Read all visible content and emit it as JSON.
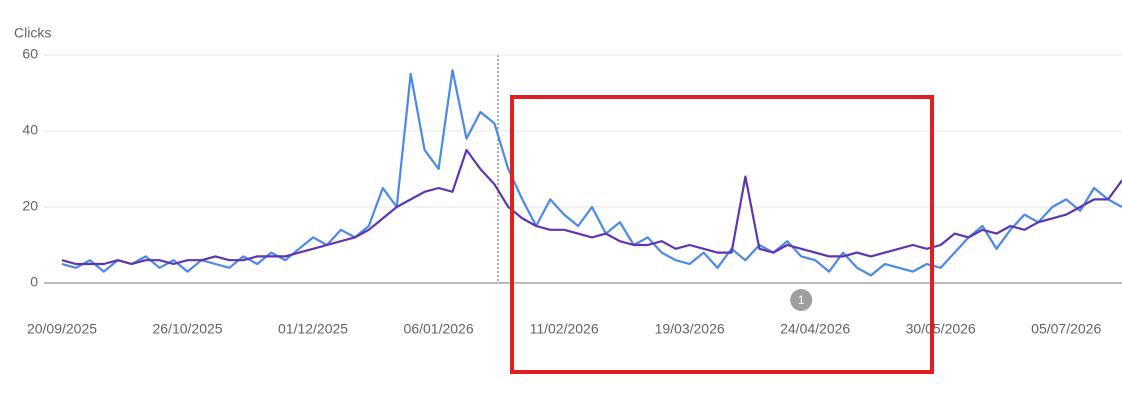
{
  "chart_data": {
    "type": "line",
    "y_label": "Clicks",
    "x": [
      "20/09/2025",
      "24/09/2025",
      "28/09/2025",
      "02/10/2025",
      "06/10/2025",
      "10/10/2025",
      "14/10/2025",
      "18/10/2025",
      "22/10/2025",
      "26/10/2025",
      "30/10/2025",
      "03/11/2025",
      "07/11/2025",
      "11/11/2025",
      "15/11/2025",
      "19/11/2025",
      "23/11/2025",
      "27/11/2025",
      "01/12/2025",
      "05/12/2025",
      "09/12/2025",
      "13/12/2025",
      "17/12/2025",
      "21/12/2025",
      "25/12/2025",
      "29/12/2025",
      "02/01/2026",
      "06/01/2026",
      "10/01/2026",
      "14/01/2026",
      "18/01/2026",
      "22/01/2026",
      "26/01/2026",
      "30/01/2026",
      "03/02/2026",
      "07/02/2026",
      "11/02/2026",
      "15/02/2026",
      "19/02/2026",
      "23/02/2026",
      "27/02/2026",
      "03/03/2026",
      "07/03/2026",
      "11/03/2026",
      "15/03/2026",
      "19/03/2026",
      "23/03/2026",
      "27/03/2026",
      "31/03/2026",
      "04/04/2026",
      "08/04/2026",
      "12/04/2026",
      "16/04/2026",
      "20/04/2026",
      "24/04/2026",
      "28/04/2026",
      "02/05/2026",
      "06/05/2026",
      "10/05/2026",
      "14/05/2026",
      "18/05/2026",
      "22/05/2026",
      "26/05/2026",
      "30/05/2026",
      "03/06/2026",
      "07/06/2026",
      "11/06/2026",
      "15/06/2026",
      "19/06/2026",
      "23/06/2026",
      "27/06/2026",
      "01/07/2026",
      "05/07/2026",
      "09/07/2026",
      "13/07/2026",
      "17/07/2026",
      "21/07/2026"
    ],
    "series": [
      {
        "color": "#4a89e8",
        "values": [
          5,
          4,
          6,
          3,
          6,
          5,
          7,
          4,
          6,
          3,
          6,
          5,
          4,
          7,
          5,
          8,
          6,
          9,
          12,
          10,
          14,
          12,
          15,
          25,
          20,
          55,
          35,
          30,
          56,
          38,
          45,
          42,
          30,
          22,
          15,
          22,
          18,
          15,
          20,
          13,
          16,
          10,
          12,
          8,
          6,
          5,
          8,
          4,
          9,
          6,
          10,
          8,
          11,
          7,
          6,
          3,
          8,
          4,
          2,
          5,
          4,
          3,
          5,
          4,
          8,
          12,
          15,
          9,
          14,
          18,
          16,
          20,
          22,
          19,
          25,
          22,
          20
        ]
      },
      {
        "color": "#5e35b1",
        "values": [
          6,
          5,
          5,
          5,
          6,
          5,
          6,
          6,
          5,
          6,
          6,
          7,
          6,
          6,
          7,
          7,
          7,
          8,
          9,
          10,
          11,
          12,
          14,
          17,
          20,
          22,
          24,
          25,
          24,
          35,
          30,
          26,
          20,
          17,
          15,
          14,
          14,
          13,
          12,
          13,
          11,
          10,
          10,
          11,
          9,
          10,
          9,
          8,
          8,
          28,
          9,
          8,
          10,
          9,
          8,
          7,
          7,
          8,
          7,
          8,
          9,
          10,
          9,
          10,
          13,
          12,
          14,
          13,
          15,
          14,
          16,
          17,
          18,
          20,
          22,
          22,
          27
        ]
      }
    ],
    "xlim": [
      "20/09/2025",
      "21/07/2026"
    ],
    "xticks": [
      "20/09/2025",
      "26/10/2025",
      "01/12/2025",
      "06/01/2026",
      "11/02/2026",
      "19/03/2026",
      "24/04/2026",
      "30/05/2026",
      "05/07/2026"
    ],
    "ylim": [
      0,
      60
    ],
    "yticks": [
      0,
      20,
      40,
      60
    ],
    "grid": true,
    "annotations": [
      {
        "x": "20/04/2026",
        "label": "1"
      }
    ]
  }
}
